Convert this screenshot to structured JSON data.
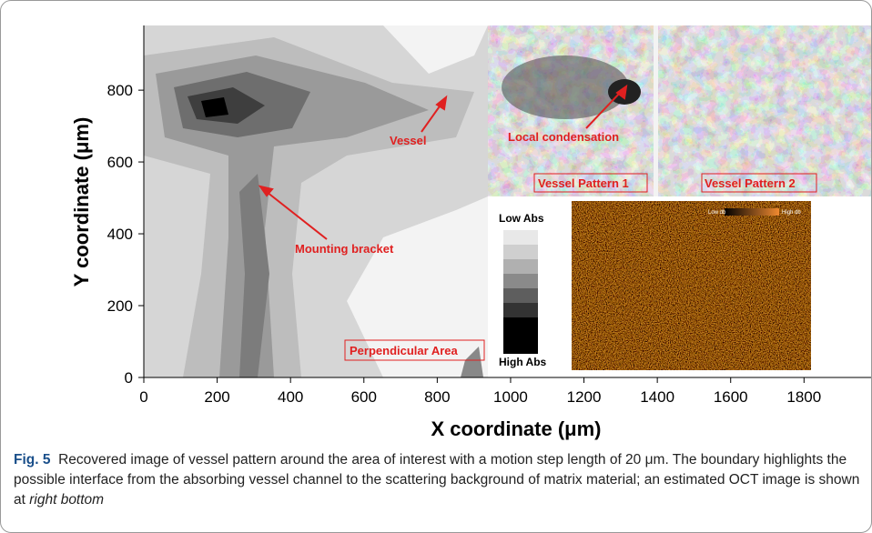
{
  "figure": {
    "x_axis": {
      "label": "X coordinate (μm)",
      "lim": [
        0,
        2030
      ],
      "ticks": [
        0,
        200,
        400,
        600,
        800,
        1000,
        1200,
        1400,
        1600,
        1800
      ]
    },
    "y_axis": {
      "label": "Y coordinate (μm)",
      "lim": [
        0,
        980
      ],
      "ticks": [
        0,
        200,
        400,
        600,
        800
      ]
    },
    "annotations": {
      "vessel": "Vessel",
      "bracket": "Mounting bracket",
      "condensation": "Local condensation",
      "pattern1": "Vessel Pattern 1",
      "pattern2": "Vessel Pattern 2",
      "perpendicular": "Perpendicular Area"
    },
    "scale": {
      "top": "Low Abs",
      "bottom": "High Abs"
    },
    "oct_scale": {
      "low": "Low db",
      "high": "High db"
    }
  },
  "caption": {
    "label": "Fig. 5",
    "text": "Recovered image of vessel pattern around the area of interest with a motion step length of 20 μm. The boundary highlights the possible interface from the absorbing vessel channel to the scattering background of matrix material; an estimated OCT image is shown at ",
    "italic": "right bottom"
  }
}
